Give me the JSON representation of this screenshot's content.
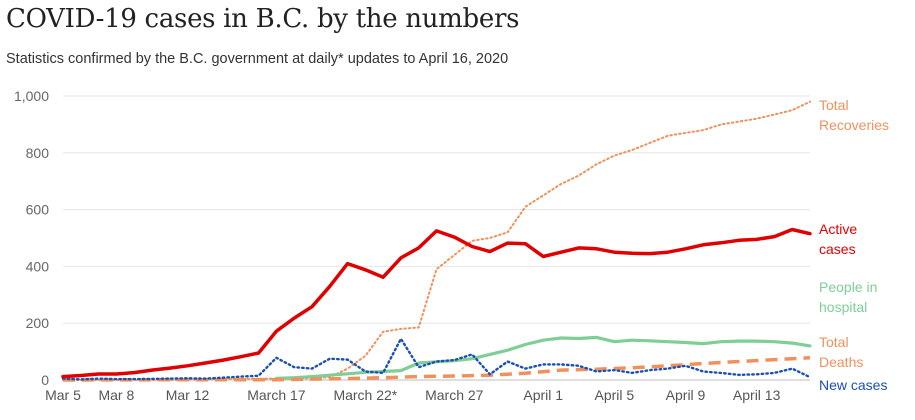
{
  "title": "COVID-19 cases in B.C. by the numbers",
  "subtitle": "Statistics confirmed by the B.C. government at daily* updates to April 16, 2020",
  "chart_data": {
    "type": "line",
    "ylim": [
      0,
      1000
    ],
    "yticks": [
      0,
      200,
      400,
      600,
      800,
      1000
    ],
    "ytick_labels": [
      "0",
      "200",
      "400",
      "600",
      "800",
      "1,000"
    ],
    "grid": true,
    "x_labels": [
      {
        "day": 0,
        "label": "Mar 5"
      },
      {
        "day": 3,
        "label": "Mar 8"
      },
      {
        "day": 7,
        "label": "Mar 12"
      },
      {
        "day": 12,
        "label": "March 17"
      },
      {
        "day": 17,
        "label": "March 22*"
      },
      {
        "day": 22,
        "label": "March 27"
      },
      {
        "day": 27,
        "label": "April 1"
      },
      {
        "day": 31,
        "label": "April 5"
      },
      {
        "day": 35,
        "label": "April 9"
      },
      {
        "day": 39,
        "label": "April 13"
      }
    ],
    "series": [
      {
        "name": "Total Recoveries",
        "label_lines": [
          "Total",
          "Recoveries"
        ],
        "color": "#f0915c",
        "style": "dotted",
        "values": [
          [
            0,
            0
          ],
          [
            1,
            0
          ],
          [
            2,
            0
          ],
          [
            3,
            0
          ],
          [
            4,
            0
          ],
          [
            5,
            0
          ],
          [
            6,
            0
          ],
          [
            7,
            1
          ],
          [
            8,
            2
          ],
          [
            9,
            3
          ],
          [
            10,
            4
          ],
          [
            11,
            5
          ],
          [
            12,
            5
          ],
          [
            13,
            5
          ],
          [
            14,
            6
          ],
          [
            15,
            10
          ],
          [
            16,
            40
          ],
          [
            17,
            85
          ],
          [
            18,
            170
          ],
          [
            19,
            180
          ],
          [
            20,
            185
          ],
          [
            21,
            390
          ],
          [
            22,
            440
          ],
          [
            23,
            490
          ],
          [
            24,
            500
          ],
          [
            25,
            520
          ],
          [
            26,
            610
          ],
          [
            27,
            650
          ],
          [
            28,
            690
          ],
          [
            29,
            720
          ],
          [
            30,
            760
          ],
          [
            31,
            790
          ],
          [
            32,
            810
          ],
          [
            33,
            835
          ],
          [
            34,
            860
          ],
          [
            35,
            870
          ],
          [
            36,
            880
          ],
          [
            37,
            900
          ],
          [
            38,
            910
          ],
          [
            39,
            920
          ],
          [
            40,
            935
          ],
          [
            41,
            950
          ],
          [
            42,
            980
          ]
        ]
      },
      {
        "name": "Active cases",
        "label_lines": [
          "Active",
          "cases"
        ],
        "color": "#e00000",
        "style": "solid",
        "values": [
          [
            0,
            12
          ],
          [
            1,
            16
          ],
          [
            2,
            21
          ],
          [
            3,
            21
          ],
          [
            4,
            26
          ],
          [
            5,
            35
          ],
          [
            6,
            42
          ],
          [
            7,
            50
          ],
          [
            8,
            60
          ],
          [
            9,
            70
          ],
          [
            10,
            82
          ],
          [
            11,
            95
          ],
          [
            12,
            172
          ],
          [
            13,
            218
          ],
          [
            14,
            258
          ],
          [
            15,
            330
          ],
          [
            16,
            410
          ],
          [
            17,
            388
          ],
          [
            18,
            362
          ],
          [
            19,
            430
          ],
          [
            20,
            465
          ],
          [
            21,
            525
          ],
          [
            22,
            503
          ],
          [
            23,
            470
          ],
          [
            24,
            452
          ],
          [
            25,
            482
          ],
          [
            26,
            480
          ],
          [
            27,
            435
          ],
          [
            28,
            450
          ],
          [
            29,
            465
          ],
          [
            30,
            462
          ],
          [
            31,
            450
          ],
          [
            32,
            446
          ],
          [
            33,
            445
          ],
          [
            34,
            450
          ],
          [
            35,
            462
          ],
          [
            36,
            476
          ],
          [
            37,
            483
          ],
          [
            38,
            492
          ],
          [
            39,
            495
          ],
          [
            40,
            505
          ],
          [
            41,
            530
          ],
          [
            42,
            515
          ]
        ]
      },
      {
        "name": "People in hospital",
        "label_lines": [
          "People in",
          "hospital"
        ],
        "color": "#7fce95",
        "style": "solid",
        "values": [
          [
            12,
            6
          ],
          [
            13,
            8
          ],
          [
            14,
            12
          ],
          [
            15,
            17
          ],
          [
            16,
            22
          ],
          [
            17,
            27
          ],
          [
            18,
            30
          ],
          [
            19,
            33
          ],
          [
            20,
            60
          ],
          [
            21,
            64
          ],
          [
            22,
            68
          ],
          [
            23,
            75
          ],
          [
            24,
            90
          ],
          [
            25,
            105
          ],
          [
            26,
            125
          ],
          [
            27,
            140
          ],
          [
            28,
            148
          ],
          [
            29,
            146
          ],
          [
            30,
            150
          ],
          [
            31,
            135
          ],
          [
            32,
            140
          ],
          [
            33,
            138
          ],
          [
            34,
            135
          ],
          [
            35,
            132
          ],
          [
            36,
            128
          ],
          [
            37,
            135
          ],
          [
            38,
            137
          ],
          [
            39,
            137
          ],
          [
            40,
            135
          ],
          [
            41,
            130
          ],
          [
            42,
            120
          ]
        ]
      },
      {
        "name": "Total Deaths",
        "label_lines": [
          "Total",
          "Deaths"
        ],
        "color": "#f0915c",
        "style": "dashed",
        "values": [
          [
            0,
            0
          ],
          [
            8,
            1
          ],
          [
            12,
            1
          ],
          [
            14,
            3
          ],
          [
            16,
            5
          ],
          [
            18,
            8
          ],
          [
            20,
            12
          ],
          [
            22,
            14
          ],
          [
            24,
            17
          ],
          [
            26,
            24
          ],
          [
            28,
            35
          ],
          [
            30,
            38
          ],
          [
            32,
            43
          ],
          [
            34,
            50
          ],
          [
            36,
            58
          ],
          [
            38,
            65
          ],
          [
            40,
            72
          ],
          [
            42,
            78
          ]
        ]
      },
      {
        "name": "New cases",
        "label_lines": [
          "New cases"
        ],
        "color": "#1a4fb4",
        "style": "dotted",
        "values": [
          [
            0,
            5
          ],
          [
            1,
            2
          ],
          [
            2,
            5
          ],
          [
            3,
            3
          ],
          [
            4,
            3
          ],
          [
            5,
            4
          ],
          [
            6,
            5
          ],
          [
            7,
            6
          ],
          [
            8,
            5
          ],
          [
            9,
            8
          ],
          [
            10,
            12
          ],
          [
            11,
            15
          ],
          [
            12,
            78
          ],
          [
            13,
            45
          ],
          [
            14,
            40
          ],
          [
            15,
            75
          ],
          [
            16,
            72
          ],
          [
            17,
            30
          ],
          [
            18,
            25
          ],
          [
            19,
            145
          ],
          [
            20,
            45
          ],
          [
            21,
            65
          ],
          [
            22,
            70
          ],
          [
            23,
            90
          ],
          [
            24,
            20
          ],
          [
            25,
            65
          ],
          [
            26,
            40
          ],
          [
            27,
            55
          ],
          [
            28,
            55
          ],
          [
            29,
            50
          ],
          [
            30,
            30
          ],
          [
            31,
            35
          ],
          [
            32,
            25
          ],
          [
            33,
            35
          ],
          [
            34,
            40
          ],
          [
            35,
            50
          ],
          [
            36,
            30
          ],
          [
            37,
            25
          ],
          [
            38,
            18
          ],
          [
            39,
            20
          ],
          [
            40,
            25
          ],
          [
            41,
            40
          ],
          [
            42,
            10
          ]
        ]
      }
    ]
  }
}
